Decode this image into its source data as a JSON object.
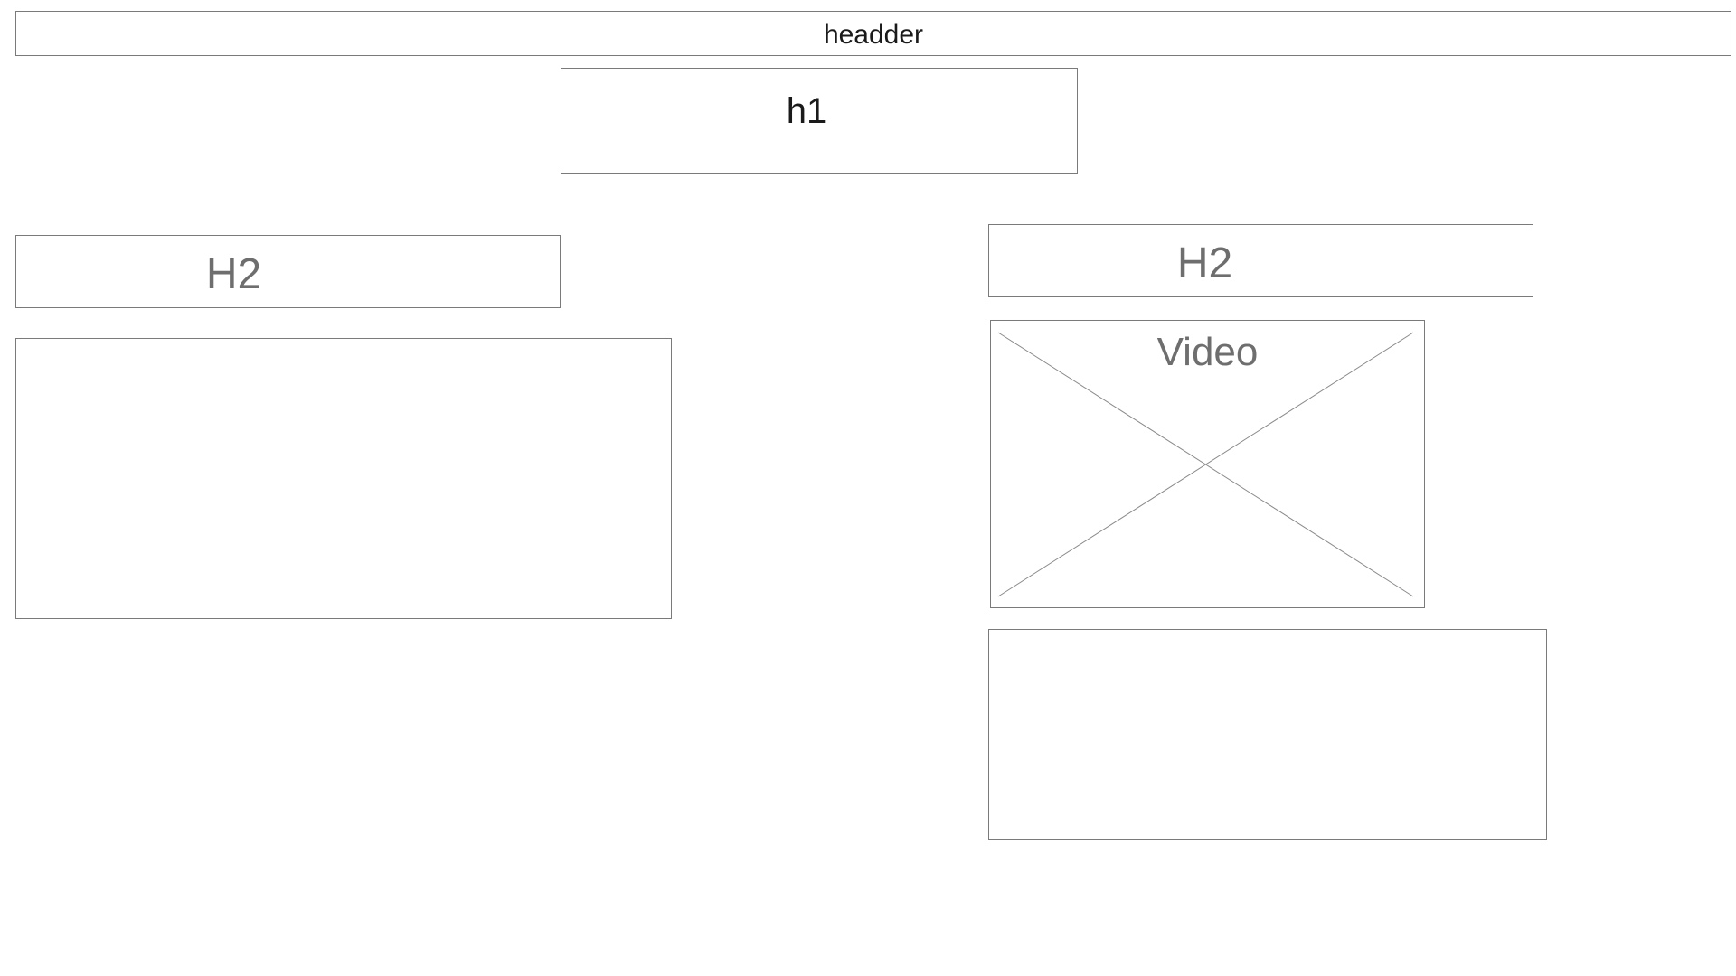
{
  "header": {
    "label": "headder"
  },
  "page_heading": {
    "label": "h1"
  },
  "left_column": {
    "heading": "H2"
  },
  "right_column": {
    "heading": "H2",
    "video_placeholder": {
      "label": "Video"
    }
  },
  "colors": {
    "border": "#7a7a7a",
    "placeholder_text": "#6e6e6e",
    "primary_text": "#1a1a1a",
    "background": "#ffffff"
  }
}
